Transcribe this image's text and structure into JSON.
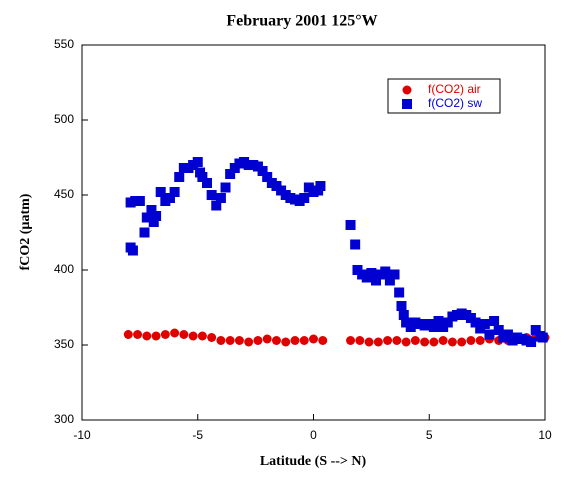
{
  "chart_data": {
    "type": "scatter",
    "title": "February 2001 125°W",
    "xlabel": "Latitude (S --> N)",
    "ylabel": "fCO2 (µatm)",
    "xlim": [
      -10,
      10
    ],
    "xticks": [
      -10,
      -5,
      0,
      5,
      10
    ],
    "ylim": [
      300,
      550
    ],
    "yticks": [
      300,
      350,
      400,
      450,
      500,
      550
    ],
    "legend": "upper right",
    "series": [
      {
        "name": "f(CO2) air",
        "color": "#e00000",
        "marker": "circle",
        "x": [
          -8.0,
          -7.6,
          -7.2,
          -6.8,
          -6.4,
          -6.0,
          -5.6,
          -5.2,
          -4.8,
          -4.4,
          -4.0,
          -3.6,
          -3.2,
          -2.8,
          -2.4,
          -2.0,
          -1.6,
          -1.2,
          -0.8,
          -0.4,
          0.0,
          0.4,
          1.6,
          2.0,
          2.4,
          2.8,
          3.2,
          3.6,
          4.0,
          4.4,
          4.8,
          5.2,
          5.6,
          6.0,
          6.4,
          6.8,
          7.2,
          7.6,
          8.0,
          8.4,
          8.8,
          9.2,
          9.6,
          10.0
        ],
        "values": [
          357,
          357,
          356,
          356,
          357,
          358,
          357,
          356,
          356,
          355,
          353,
          353,
          353,
          352,
          353,
          354,
          353,
          352,
          353,
          353,
          354,
          353,
          353,
          353,
          352,
          352,
          353,
          353,
          352,
          353,
          352,
          352,
          353,
          352,
          352,
          353,
          353,
          354,
          353,
          353,
          354,
          355,
          355,
          355
        ]
      },
      {
        "name": "f(CO2) sw",
        "color": "#0000d0",
        "marker": "square",
        "x": [
          -7.9,
          -7.9,
          -7.8,
          -7.7,
          -7.5,
          -7.3,
          -7.2,
          -7.0,
          -6.9,
          -6.8,
          -6.6,
          -6.4,
          -6.2,
          -6.0,
          -5.8,
          -5.6,
          -5.4,
          -5.2,
          -5.0,
          -4.9,
          -4.8,
          -4.6,
          -4.4,
          -4.2,
          -4.0,
          -3.8,
          -3.6,
          -3.4,
          -3.2,
          -3.0,
          -2.8,
          -2.6,
          -2.4,
          -2.2,
          -2.0,
          -1.8,
          -1.6,
          -1.4,
          -1.2,
          -1.0,
          -0.8,
          -0.6,
          -0.4,
          -0.2,
          0.0,
          0.2,
          0.3,
          1.6,
          1.8,
          1.9,
          2.1,
          2.3,
          2.5,
          2.7,
          2.9,
          3.1,
          3.3,
          3.5,
          3.7,
          3.8,
          3.9,
          4.0,
          4.2,
          4.4,
          4.6,
          4.8,
          5.0,
          5.2,
          5.4,
          5.6,
          5.8,
          6.0,
          6.2,
          6.4,
          6.6,
          6.8,
          7.0,
          7.2,
          7.4,
          7.6,
          7.8,
          8.0,
          8.2,
          8.4,
          8.6,
          8.8,
          9.0,
          9.2,
          9.4,
          9.6,
          9.8,
          9.9
        ],
        "values": [
          415,
          445,
          413,
          446,
          446,
          425,
          435,
          440,
          432,
          436,
          452,
          446,
          448,
          452,
          462,
          468,
          468,
          470,
          472,
          465,
          462,
          458,
          450,
          443,
          448,
          455,
          464,
          468,
          471,
          472,
          470,
          470,
          469,
          466,
          462,
          458,
          456,
          453,
          450,
          448,
          447,
          446,
          448,
          455,
          452,
          453,
          456,
          430,
          417,
          400,
          397,
          395,
          398,
          393,
          397,
          399,
          393,
          397,
          385,
          376,
          370,
          365,
          362,
          365,
          364,
          363,
          364,
          362,
          366,
          362,
          365,
          369,
          370,
          371,
          370,
          368,
          365,
          361,
          364,
          357,
          366,
          360,
          355,
          357,
          353,
          355,
          354,
          353,
          352,
          360,
          356,
          355
        ]
      }
    ]
  }
}
